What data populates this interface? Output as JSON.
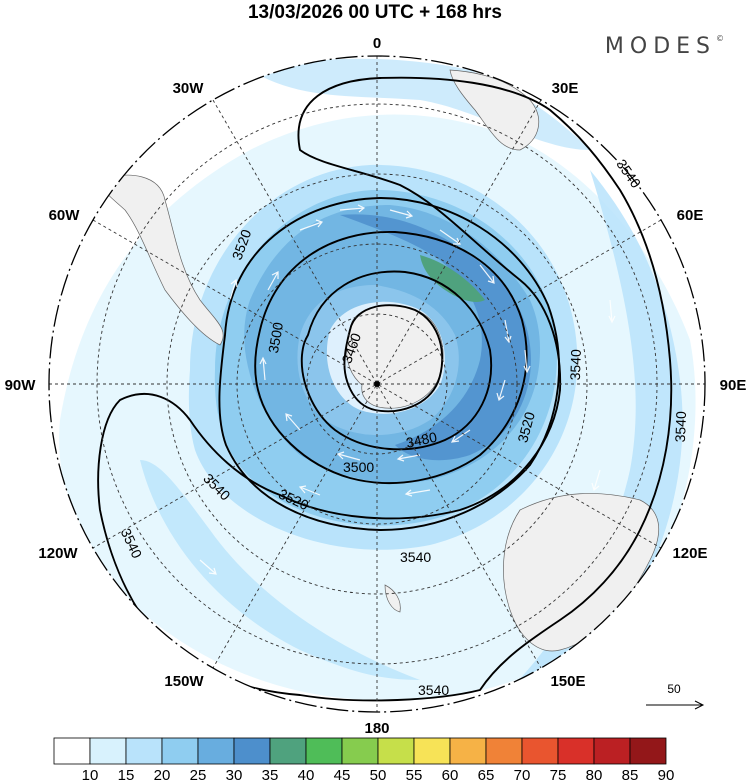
{
  "title": "13/03/2026  00 UTC  + 168 hrs",
  "brand": {
    "name": "MODES",
    "mark": "©"
  },
  "longitude_labels": [
    {
      "id": "lon-0",
      "text": "0"
    },
    {
      "id": "lon-30e",
      "text": "30E"
    },
    {
      "id": "lon-60e",
      "text": "60E"
    },
    {
      "id": "lon-90e",
      "text": "90E"
    },
    {
      "id": "lon-120e",
      "text": "120E"
    },
    {
      "id": "lon-150e",
      "text": "150E"
    },
    {
      "id": "lon-180",
      "text": "180"
    },
    {
      "id": "lon-150w",
      "text": "150W"
    },
    {
      "id": "lon-120w",
      "text": "120W"
    },
    {
      "id": "lon-90w",
      "text": "90W"
    },
    {
      "id": "lon-60w",
      "text": "60W"
    },
    {
      "id": "lon-30w",
      "text": "30W"
    }
  ],
  "contour_labels": [
    "3460",
    "3480",
    "3500",
    "3500",
    "3520",
    "3520",
    "3520",
    "3540",
    "3540",
    "3540",
    "3540",
    "3540",
    "3540",
    "3540"
  ],
  "reference_vector": {
    "label": "50"
  },
  "colorbar": {
    "ticks": [
      "10",
      "15",
      "20",
      "25",
      "30",
      "35",
      "40",
      "45",
      "50",
      "55",
      "60",
      "65",
      "70",
      "75",
      "80",
      "85",
      "90"
    ],
    "colors": [
      "#ffffff",
      "#d8f2fd",
      "#b9e3fb",
      "#8fcdf0",
      "#68addf",
      "#4d8fcc",
      "#4fa27e",
      "#4fbd58",
      "#86cc4e",
      "#c6df4a",
      "#f7e357",
      "#f6b246",
      "#f08237",
      "#e9552f",
      "#d93029",
      "#bb2023",
      "#931719"
    ]
  }
}
